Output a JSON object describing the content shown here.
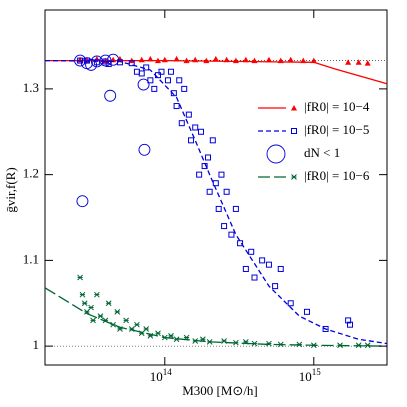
{
  "chart_data": {
    "type": "scatter",
    "xlabel": "M300 [M⊙/h]",
    "ylabel": "ḡvir,f(R)",
    "xscale": "log",
    "xlim": [
      15700000000000,
      3100000000000000
    ],
    "ylim": [
      0.978,
      1.392
    ],
    "xticks": [
      {
        "value": 100000000000000,
        "label": "10",
        "exponent": "14"
      },
      {
        "value": 1000000000000000,
        "label": "10",
        "exponent": "15"
      }
    ],
    "yticks": [
      1,
      1.1,
      1.2,
      1.3
    ],
    "reference_lines": [
      1.3333,
      1
    ],
    "legend": "right",
    "series": [
      {
        "name": "|fR0| = 10−4",
        "color": "#ff0000",
        "marker": "triangle",
        "dash": "solid",
        "x": [
          27000000000000,
          30000000000000,
          35000000000000,
          40000000000000,
          45000000000000,
          50000000000000,
          60000000000000,
          70000000000000,
          80000000000000,
          90000000000000,
          100000000000000,
          120000000000000,
          140000000000000,
          160000000000000,
          190000000000000,
          220000000000000,
          260000000000000,
          300000000000000,
          350000000000000,
          400000000000000,
          500000000000000,
          600000000000000,
          700000000000000,
          850000000000000,
          1000000000000000,
          1700000000000000,
          2000000000000000,
          2300000000000000
        ],
        "values": [
          1.334,
          1.333,
          1.335,
          1.333,
          1.334,
          1.335,
          1.333,
          1.334,
          1.335,
          1.333,
          1.334,
          1.335,
          1.333,
          1.334,
          1.333,
          1.335,
          1.334,
          1.333,
          1.334,
          1.333,
          1.334,
          1.333,
          1.334,
          1.333,
          1.333,
          1.331,
          1.331,
          1.33
        ],
        "model_x": [
          15700000000000,
          100000000000000,
          1000000000000000,
          1400000000000000,
          3100000000000000
        ],
        "model_values": [
          1.333,
          1.333,
          1.331,
          1.323,
          1.306
        ]
      },
      {
        "name": "|fR0| = 10−5",
        "color": "#0000dd",
        "marker": "square",
        "dash": "short",
        "x": [
          27000000000000,
          30000000000000,
          35000000000000,
          40000000000000,
          42000000000000,
          50000000000000,
          60000000000000,
          65000000000000,
          70000000000000,
          75000000000000,
          80000000000000,
          85000000000000,
          90000000000000,
          95000000000000,
          105000000000000,
          110000000000000,
          115000000000000,
          120000000000000,
          125000000000000,
          130000000000000,
          135000000000000,
          145000000000000,
          150000000000000,
          160000000000000,
          170000000000000,
          175000000000000,
          185000000000000,
          195000000000000,
          200000000000000,
          210000000000000,
          220000000000000,
          230000000000000,
          240000000000000,
          250000000000000,
          260000000000000,
          280000000000000,
          300000000000000,
          320000000000000,
          350000000000000,
          380000000000000,
          400000000000000,
          450000000000000,
          500000000000000,
          550000000000000,
          600000000000000,
          700000000000000,
          900000000000000,
          1200000000000000,
          1700000000000000,
          1750000000000000
        ],
        "values": [
          1.333,
          1.333,
          1.331,
          1.332,
          1.329,
          1.331,
          1.33,
          1.32,
          1.318,
          1.325,
          1.31,
          1.3,
          1.316,
          1.32,
          1.31,
          1.32,
          1.295,
          1.28,
          1.31,
          1.26,
          1.3,
          1.27,
          1.24,
          1.255,
          1.2,
          1.25,
          1.21,
          1.22,
          1.18,
          1.24,
          1.19,
          1.16,
          1.2,
          1.14,
          1.18,
          1.13,
          1.16,
          1.12,
          1.09,
          1.11,
          1.08,
          1.1,
          1.095,
          1.07,
          1.09,
          1.05,
          1.04,
          1.02,
          1.03,
          1.025
        ],
        "model_x": [
          15700000000000,
          50000000000000,
          80000000000000,
          120000000000000,
          160000000000000,
          200000000000000,
          300000000000000,
          500000000000000,
          800000000000000,
          1200000000000000,
          2000000000000000,
          3100000000000000
        ],
        "model_values": [
          1.333,
          1.332,
          1.322,
          1.29,
          1.24,
          1.2,
          1.13,
          1.07,
          1.035,
          1.02,
          1.008,
          1.003
        ]
      },
      {
        "name": "dN < 1",
        "color": "#0000dd",
        "marker": "circle",
        "x": [
          27000000000000,
          30000000000000,
          32000000000000,
          35000000000000,
          40000000000000,
          43000000000000,
          45000000000000,
          72000000000000,
          73000000000000,
          28000000000000
        ],
        "values": [
          1.333,
          1.33,
          1.328,
          1.332,
          1.333,
          1.292,
          1.334,
          1.305,
          1.229,
          1.169
        ]
      },
      {
        "name": "|fR0| = 10−6",
        "color": "#006633",
        "marker": "cross",
        "dash": "long",
        "x": [
          27000000000000,
          28000000000000,
          29000000000000,
          30000000000000,
          32000000000000,
          33000000000000,
          35000000000000,
          37000000000000,
          40000000000000,
          42000000000000,
          45000000000000,
          48000000000000,
          50000000000000,
          55000000000000,
          60000000000000,
          65000000000000,
          70000000000000,
          75000000000000,
          80000000000000,
          90000000000000,
          100000000000000,
          110000000000000,
          120000000000000,
          140000000000000,
          160000000000000,
          180000000000000,
          200000000000000,
          250000000000000,
          300000000000000,
          350000000000000,
          400000000000000,
          500000000000000,
          600000000000000,
          800000000000000,
          1000000000000000,
          1500000000000000,
          2000000000000000,
          2300000000000000
        ],
        "values": [
          1.08,
          1.06,
          1.05,
          1.04,
          1.045,
          1.03,
          1.06,
          1.035,
          1.03,
          1.05,
          1.025,
          1.04,
          1.02,
          1.03,
          1.02,
          1.025,
          1.015,
          1.02,
          1.012,
          1.015,
          1.01,
          1.012,
          1.008,
          1.01,
          1.006,
          1.008,
          1.005,
          1.006,
          1.004,
          1.005,
          1.003,
          1.003,
          1.002,
          1.002,
          1.001,
          1.001,
          1.001,
          1.001
        ],
        "model_x": [
          15700000000000,
          30000000000000,
          50000000000000,
          100000000000000,
          200000000000000,
          500000000000000,
          1000000000000000,
          3100000000000000
        ],
        "model_values": [
          1.068,
          1.038,
          1.022,
          1.01,
          1.005,
          1.002,
          1.001,
          1.0
        ]
      }
    ]
  }
}
